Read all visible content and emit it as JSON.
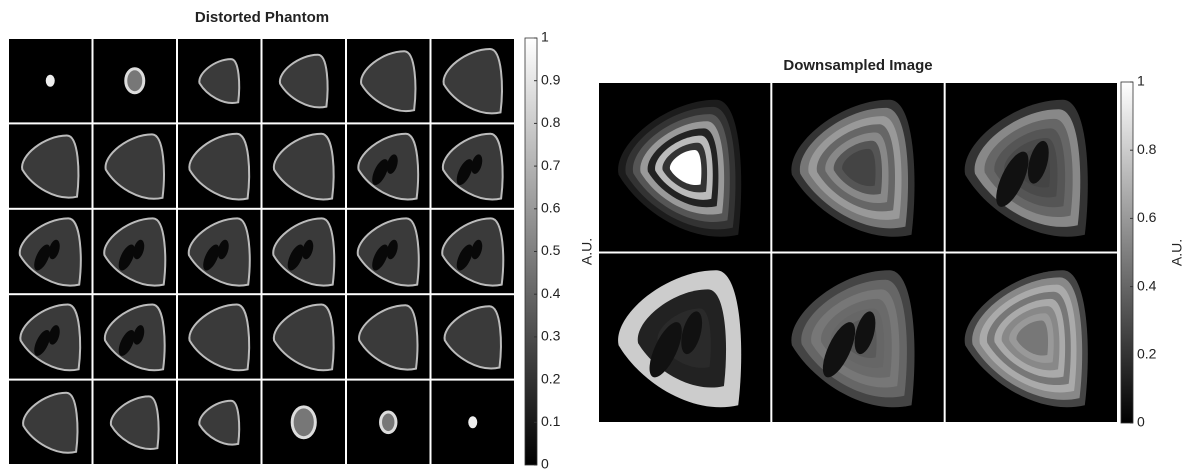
{
  "panels": [
    {
      "title": "Distorted Phantom",
      "colorbar": {
        "label": "A.U.",
        "lim": [
          0,
          1
        ],
        "ticks": [
          0,
          0.1,
          0.2,
          0.3,
          0.4,
          0.5,
          0.6,
          0.7,
          0.8,
          0.9,
          1
        ]
      }
    },
    {
      "title": "Downsampled Image",
      "colorbar": {
        "label": "A.U.",
        "lim": [
          0,
          1
        ],
        "ticks": [
          0,
          0.2,
          0.4,
          0.6,
          0.8,
          1
        ]
      }
    }
  ]
}
